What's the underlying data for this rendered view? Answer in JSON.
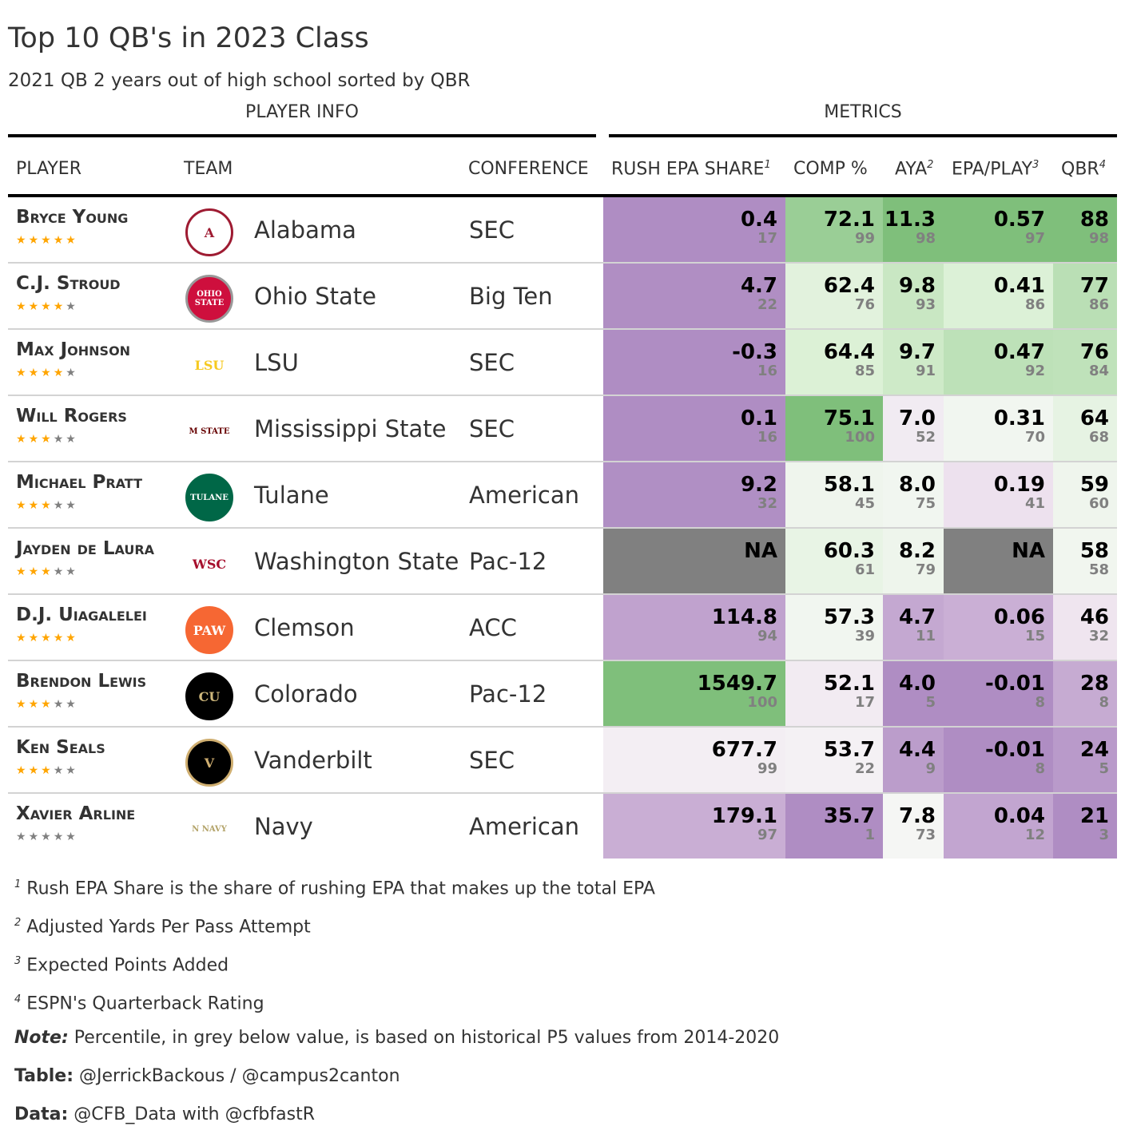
{
  "title": "Top 10 QB's in 2023 Class",
  "subtitle": "2021 QB 2 years out of high school sorted by QBR",
  "spanners": {
    "player_info": "PLAYER INFO",
    "metrics": "METRICS"
  },
  "columns": {
    "player": "PLAYER",
    "team": "TEAM",
    "conference": "CONFERENCE",
    "rush": "RUSH EPA SHARE",
    "rush_sup": "1",
    "comp": "COMP %",
    "aya": "AYA",
    "aya_sup": "2",
    "epa": "EPA/PLAY",
    "epa_sup": "3",
    "qbr": "QBR",
    "qbr_sup": "4"
  },
  "colors": {
    "star_on": "#FFA500",
    "star_off": "#808080",
    "na": "#808080",
    "palette": [
      "#af8dc3",
      "#e7d4e8",
      "#f7f7f7",
      "#d9f0d3",
      "#7fbf7b"
    ]
  },
  "chart_data": {
    "type": "table",
    "rows": [
      {
        "player": "Bryce Young",
        "stars": 5,
        "team": "Alabama",
        "logo": {
          "text": "A",
          "bg": "#fff",
          "fg": "#9e1b32",
          "border": "#9e1b32"
        },
        "conference": "SEC",
        "rush": "0.4",
        "rush_p": "17",
        "comp": "72.1",
        "comp_p": "99",
        "aya": "11.3",
        "aya_p": "98",
        "epa": "0.57",
        "epa_p": "97",
        "qbr": "88",
        "qbr_p": "98"
      },
      {
        "player": "C.J. Stroud",
        "stars": 4,
        "team": "Ohio State",
        "logo": {
          "text": "OHIO STATE",
          "bg": "#ce0f3d",
          "fg": "#fff",
          "border": "#999"
        },
        "conference": "Big Ten",
        "rush": "4.7",
        "rush_p": "22",
        "comp": "62.4",
        "comp_p": "76",
        "aya": "9.8",
        "aya_p": "93",
        "epa": "0.41",
        "epa_p": "86",
        "qbr": "77",
        "qbr_p": "86"
      },
      {
        "player": "Max Johnson",
        "stars": 4,
        "team": "LSU",
        "logo": {
          "text": "LSU",
          "bg": "#fff",
          "fg": "#f6c920",
          "border": "#fff"
        },
        "conference": "SEC",
        "rush": "-0.3",
        "rush_p": "16",
        "comp": "64.4",
        "comp_p": "85",
        "aya": "9.7",
        "aya_p": "91",
        "epa": "0.47",
        "epa_p": "92",
        "qbr": "76",
        "qbr_p": "84"
      },
      {
        "player": "Will Rogers",
        "stars": 3,
        "team": "Mississippi State",
        "logo": {
          "text": "M STATE",
          "bg": "#fff",
          "fg": "#660000",
          "border": "#fff"
        },
        "conference": "SEC",
        "rush": "0.1",
        "rush_p": "16",
        "comp": "75.1",
        "comp_p": "100",
        "aya": "7.0",
        "aya_p": "52",
        "epa": "0.31",
        "epa_p": "70",
        "qbr": "64",
        "qbr_p": "68"
      },
      {
        "player": "Michael Pratt",
        "stars": 3,
        "team": "Tulane",
        "logo": {
          "text": "TULANE",
          "bg": "#006747",
          "fg": "#fff",
          "border": "#006747"
        },
        "conference": "American",
        "rush": "9.2",
        "rush_p": "32",
        "comp": "58.1",
        "comp_p": "45",
        "aya": "8.0",
        "aya_p": "75",
        "epa": "0.19",
        "epa_p": "41",
        "qbr": "59",
        "qbr_p": "60"
      },
      {
        "player": "Jayden de Laura",
        "stars": 3,
        "team": "Washington State",
        "logo": {
          "text": "WSC",
          "bg": "#fff",
          "fg": "#a60f2d",
          "border": "#fff"
        },
        "conference": "Pac-12",
        "rush": "NA",
        "rush_p": "",
        "comp": "60.3",
        "comp_p": "61",
        "aya": "8.2",
        "aya_p": "79",
        "epa": "NA",
        "epa_p": "",
        "qbr": "58",
        "qbr_p": "58"
      },
      {
        "player": "D.J. Uiagalelei",
        "stars": 5,
        "team": "Clemson",
        "logo": {
          "text": "PAW",
          "bg": "#f66733",
          "fg": "#fff",
          "border": "#f66733"
        },
        "conference": "ACC",
        "rush": "114.8",
        "rush_p": "94",
        "comp": "57.3",
        "comp_p": "39",
        "aya": "4.7",
        "aya_p": "11",
        "epa": "0.06",
        "epa_p": "15",
        "qbr": "46",
        "qbr_p": "32"
      },
      {
        "player": "Brendon Lewis",
        "stars": 3,
        "team": "Colorado",
        "logo": {
          "text": "CU",
          "bg": "#000",
          "fg": "#cfb87c",
          "border": "#000"
        },
        "conference": "Pac-12",
        "rush": "1549.7",
        "rush_p": "100",
        "comp": "52.1",
        "comp_p": "17",
        "aya": "4.0",
        "aya_p": "5",
        "epa": "-0.01",
        "epa_p": "8",
        "qbr": "28",
        "qbr_p": "8"
      },
      {
        "player": "Ken Seals",
        "stars": 3,
        "team": "Vanderbilt",
        "logo": {
          "text": "V",
          "bg": "#000",
          "fg": "#cfae70",
          "border": "#cfae70"
        },
        "conference": "SEC",
        "rush": "677.7",
        "rush_p": "99",
        "comp": "53.7",
        "comp_p": "22",
        "aya": "4.4",
        "aya_p": "9",
        "epa": "-0.01",
        "epa_p": "8",
        "qbr": "24",
        "qbr_p": "5"
      },
      {
        "player": "Xavier Arline",
        "stars": 0,
        "team": "Navy",
        "logo": {
          "text": "N NAVY",
          "bg": "#fff",
          "fg": "#b3a369",
          "border": "#fff"
        },
        "conference": "American",
        "rush": "179.1",
        "rush_p": "97",
        "comp": "35.7",
        "comp_p": "1",
        "aya": "7.8",
        "aya_p": "73",
        "epa": "0.04",
        "epa_p": "12",
        "qbr": "21",
        "qbr_p": "3"
      }
    ]
  },
  "footnotes": [
    {
      "mark": "1",
      "text": "Rush EPA Share is the share of rushing EPA that makes up the total EPA"
    },
    {
      "mark": "2",
      "text": "Adjusted Yards Per Pass Attempt"
    },
    {
      "mark": "3",
      "text": "Expected Points Added"
    },
    {
      "mark": "4",
      "text": "ESPN's Quarterback Rating"
    }
  ],
  "source_notes": [
    {
      "label": "Note:",
      "text": " Percentile, in grey below value, is based on historical P5 values from 2014-2020"
    },
    {
      "label": "Table:",
      "text": " @JerrickBackous / @campus2canton"
    },
    {
      "label": "Data:",
      "text": " @CFB_Data with @cfbfastR"
    }
  ]
}
